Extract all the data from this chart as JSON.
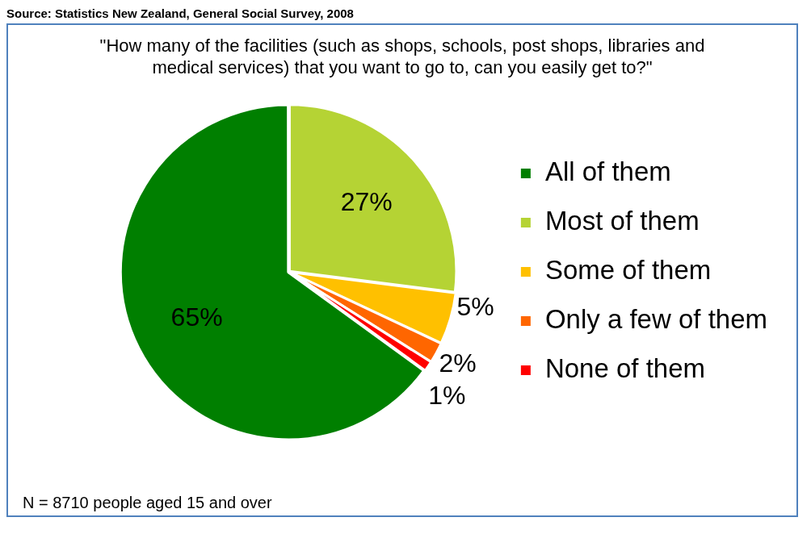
{
  "chart_data": {
    "type": "pie",
    "title": "\"How many of the facilities (such as shops, schools, post shops, libraries and medical services) that you want to go to, can you easily get to?\"",
    "categories": [
      "All of them",
      "Most of them",
      "Some of them",
      "Only a few of them",
      "None of them"
    ],
    "values": [
      65,
      27,
      5,
      2,
      1
    ],
    "colors": [
      "#007f00",
      "#b5d334",
      "#ffc000",
      "#ff6600",
      "#ff0000"
    ],
    "value_labels": [
      "65%",
      "27%",
      "5%",
      "2%",
      "1%"
    ],
    "legend": "right",
    "annotations": [
      "Source: Statistics New Zealand, General Social Survey, 2008",
      "N = 8710 people aged 15 and over"
    ]
  }
}
